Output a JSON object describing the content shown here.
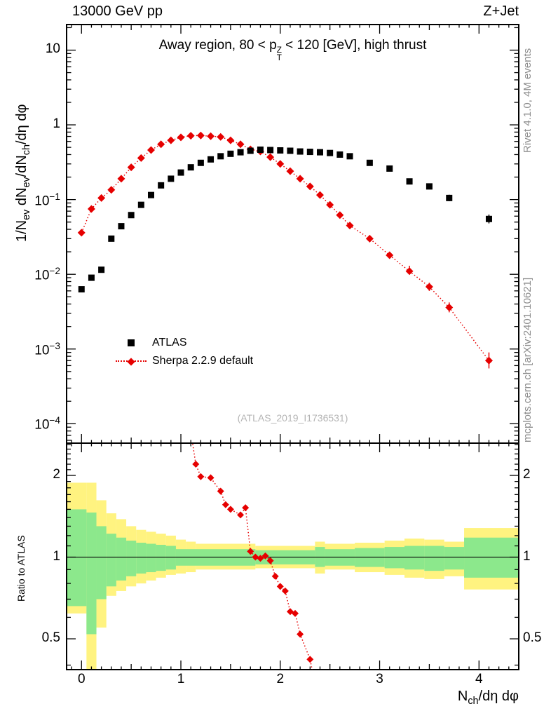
{
  "header": {
    "left": "13000 GeV pp",
    "right": "Z+Jet"
  },
  "title": {
    "segments": [
      {
        "t": "Away region, 80 < "
      },
      {
        "t": "p"
      },
      {
        "stack": {
          "sup": "Z",
          "sub": "T"
        }
      },
      {
        "t": " < 120 [GeV], high thrust"
      }
    ]
  },
  "watermark": "(ATLAS_2019_I1736531)",
  "side_labels": {
    "rivet": "Rivet 4.1.0,  4M events",
    "mcplots": "mcplots.cern.ch [arXiv:2401.10621]"
  },
  "axis_labels": {
    "y_segments": [
      {
        "t": "1/N"
      },
      {
        "t": "ev",
        "sub": true
      },
      {
        "t": " dN"
      },
      {
        "t": "ev",
        "sub": true
      },
      {
        "t": "/dN"
      },
      {
        "t": "ch",
        "sub": true
      },
      {
        "t": "/dη dφ"
      }
    ],
    "x_segments": [
      {
        "t": "N"
      },
      {
        "t": "ch",
        "sub": true
      },
      {
        "t": "/dη dφ"
      }
    ],
    "ratio_y": "Ratio to ATLAS"
  },
  "legend": {
    "items": [
      {
        "label": "ATLAS",
        "marker": "square",
        "color": "#000000"
      },
      {
        "label": "Sherpa 2.2.9 default",
        "marker": "diamond",
        "color": "#e60000",
        "line": "dotted"
      }
    ]
  },
  "colors": {
    "atlas": "#000000",
    "sherpa": "#e60000",
    "band_yellow": "#fff380",
    "band_green": "#8ce88c",
    "gray_text": "#8c8c8c",
    "watermark": "#b4b4b4"
  },
  "chart_data": {
    "type": "line",
    "title": "Away region, 80 < pT(Z) < 120 [GeV], high thrust",
    "xlabel": "Nch/dη dφ",
    "ylabel": "1/Nev dNev/dNch/dη dφ",
    "x_range": [
      -0.15,
      4.4
    ],
    "y_range_log": [
      5.5e-05,
      22
    ],
    "y_scale": "log",
    "x_ticks": [
      {
        "v": 0,
        "label": "0"
      },
      {
        "v": 1,
        "label": "1"
      },
      {
        "v": 2,
        "label": "2"
      },
      {
        "v": 3,
        "label": "3"
      },
      {
        "v": 4,
        "label": "4"
      }
    ],
    "y_ticks": [
      {
        "v": 10,
        "base": "10",
        "exp": ""
      },
      {
        "v": 1,
        "base": "1",
        "exp": ""
      },
      {
        "v": 0.1,
        "base": "10",
        "exp": "−1"
      },
      {
        "v": 0.01,
        "base": "10",
        "exp": "−2"
      },
      {
        "v": 0.001,
        "base": "10",
        "exp": "−3"
      },
      {
        "v": 0.0001,
        "base": "10",
        "exp": "−4"
      }
    ],
    "main_series": [
      {
        "name": "Sherpa 2.2.9 default",
        "marker": "diamond",
        "color": "#e60000",
        "line": "dotted",
        "x": [
          0,
          0.1,
          0.2,
          0.3,
          0.4,
          0.5,
          0.6,
          0.7,
          0.8,
          0.9,
          1.0,
          1.1,
          1.2,
          1.3,
          1.4,
          1.5,
          1.6,
          1.7,
          1.8,
          1.9,
          2.0,
          2.1,
          2.2,
          2.3,
          2.4,
          2.5,
          2.6,
          2.7,
          2.9,
          3.1,
          3.3,
          3.5,
          3.7,
          4.1
        ],
        "y": [
          0.036,
          0.075,
          0.105,
          0.135,
          0.19,
          0.27,
          0.36,
          0.46,
          0.55,
          0.62,
          0.68,
          0.715,
          0.72,
          0.705,
          0.69,
          0.62,
          0.55,
          0.47,
          0.44,
          0.37,
          0.3,
          0.24,
          0.19,
          0.15,
          0.115,
          0.085,
          0.062,
          0.045,
          0.03,
          0.018,
          0.011,
          0.0068,
          0.0036,
          0.0007
        ],
        "err": [
          [
            3.3,
            0.0105,
            0.013
          ],
          [
            3.5,
            0.006,
            0.0077
          ],
          [
            3.7,
            0.0031,
            0.0042
          ],
          [
            4.1,
            0.00055,
            0.0009
          ]
        ]
      },
      {
        "name": "ATLAS",
        "marker": "square",
        "color": "#000000",
        "line": "none",
        "x": [
          0,
          0.1,
          0.2,
          0.3,
          0.4,
          0.5,
          0.6,
          0.7,
          0.8,
          0.9,
          1.0,
          1.1,
          1.2,
          1.3,
          1.4,
          1.5,
          1.6,
          1.7,
          1.8,
          1.9,
          2.0,
          2.1,
          2.2,
          2.3,
          2.4,
          2.5,
          2.6,
          2.7,
          2.9,
          3.1,
          3.3,
          3.5,
          3.7,
          4.1
        ],
        "y": [
          0.0063,
          0.009,
          0.0115,
          0.03,
          0.044,
          0.062,
          0.085,
          0.115,
          0.155,
          0.19,
          0.23,
          0.27,
          0.31,
          0.345,
          0.38,
          0.41,
          0.43,
          0.45,
          0.465,
          0.46,
          0.455,
          0.45,
          0.44,
          0.435,
          0.43,
          0.42,
          0.4,
          0.38,
          0.31,
          0.26,
          0.175,
          0.15,
          0.105,
          0.055
        ],
        "err": [
          [
            3.3,
            0.16,
            0.19
          ],
          [
            3.5,
            0.137,
            0.163
          ],
          [
            3.7,
            0.095,
            0.116
          ],
          [
            4.1,
            0.048,
            0.063
          ]
        ]
      }
    ],
    "ratio_panel": {
      "ylabel": "Ratio to ATLAS",
      "y_range_log": [
        0.385,
        2.63
      ],
      "y_ticks": [
        {
          "v": 2,
          "base": "2",
          "exp": ""
        },
        {
          "v": 1,
          "base": "1",
          "exp": ""
        },
        {
          "v": 0.5,
          "base": "0.5",
          "exp": ""
        }
      ],
      "reference_line": 1,
      "bands": {
        "yellow": [
          [
            -0.15,
            0.05,
            0.62,
            1.88
          ],
          [
            0.05,
            0.15,
            0.35,
            1.88
          ],
          [
            0.15,
            0.25,
            0.55,
            1.62
          ],
          [
            0.25,
            0.35,
            0.72,
            1.45
          ],
          [
            0.35,
            0.45,
            0.75,
            1.38
          ],
          [
            0.45,
            0.55,
            0.78,
            1.3
          ],
          [
            0.55,
            0.65,
            0.8,
            1.26
          ],
          [
            0.65,
            0.75,
            0.82,
            1.24
          ],
          [
            0.75,
            0.85,
            0.84,
            1.22
          ],
          [
            0.85,
            0.95,
            0.86,
            1.2
          ],
          [
            0.95,
            1.05,
            0.87,
            1.16
          ],
          [
            1.05,
            1.15,
            0.88,
            1.14
          ],
          [
            1.15,
            1.75,
            0.9,
            1.12
          ],
          [
            1.75,
            2.35,
            0.91,
            1.1
          ],
          [
            2.35,
            2.45,
            0.87,
            1.14
          ],
          [
            2.45,
            2.75,
            0.9,
            1.12
          ],
          [
            2.75,
            3.05,
            0.88,
            1.13
          ],
          [
            3.05,
            3.25,
            0.86,
            1.15
          ],
          [
            3.25,
            3.45,
            0.84,
            1.17
          ],
          [
            3.45,
            3.65,
            0.83,
            1.16
          ],
          [
            3.65,
            3.85,
            0.85,
            1.14
          ],
          [
            3.85,
            4.4,
            0.76,
            1.28
          ]
        ],
        "green": [
          [
            -0.15,
            0.05,
            0.66,
            1.5
          ],
          [
            0.05,
            0.15,
            0.52,
            1.46
          ],
          [
            0.15,
            0.25,
            0.7,
            1.3
          ],
          [
            0.25,
            0.35,
            0.78,
            1.22
          ],
          [
            0.35,
            0.45,
            0.82,
            1.18
          ],
          [
            0.45,
            0.55,
            0.85,
            1.15
          ],
          [
            0.55,
            0.65,
            0.87,
            1.13
          ],
          [
            0.65,
            0.75,
            0.88,
            1.12
          ],
          [
            0.75,
            0.85,
            0.89,
            1.11
          ],
          [
            0.85,
            0.95,
            0.9,
            1.1
          ],
          [
            0.95,
            1.75,
            0.93,
            1.07
          ],
          [
            1.75,
            2.35,
            0.94,
            1.06
          ],
          [
            2.35,
            2.45,
            0.92,
            1.09
          ],
          [
            2.45,
            2.75,
            0.93,
            1.07
          ],
          [
            2.75,
            3.05,
            0.92,
            1.08
          ],
          [
            3.05,
            3.25,
            0.91,
            1.09
          ],
          [
            3.25,
            3.45,
            0.9,
            1.1
          ],
          [
            3.45,
            3.65,
            0.89,
            1.1
          ],
          [
            3.65,
            3.85,
            0.9,
            1.09
          ],
          [
            3.85,
            4.4,
            0.84,
            1.18
          ]
        ]
      },
      "ratio_series": {
        "name": "Sherpa 2.2.9 default / ATLAS",
        "color": "#e60000",
        "marker": "diamond",
        "line": "dotted",
        "x": [
          1.1,
          1.15,
          1.2,
          1.3,
          1.4,
          1.45,
          1.5,
          1.6,
          1.65,
          1.7,
          1.75,
          1.8,
          1.85,
          1.9,
          1.95,
          2.0,
          2.05,
          2.1,
          2.15,
          2.2,
          2.3,
          2.35
        ],
        "y": [
          2.9,
          2.2,
          1.98,
          1.96,
          1.75,
          1.56,
          1.5,
          1.43,
          1.52,
          1.05,
          1.0,
          0.99,
          1.01,
          0.97,
          0.85,
          0.78,
          0.75,
          0.63,
          0.62,
          0.52,
          0.42,
          0.34
        ]
      }
    }
  }
}
